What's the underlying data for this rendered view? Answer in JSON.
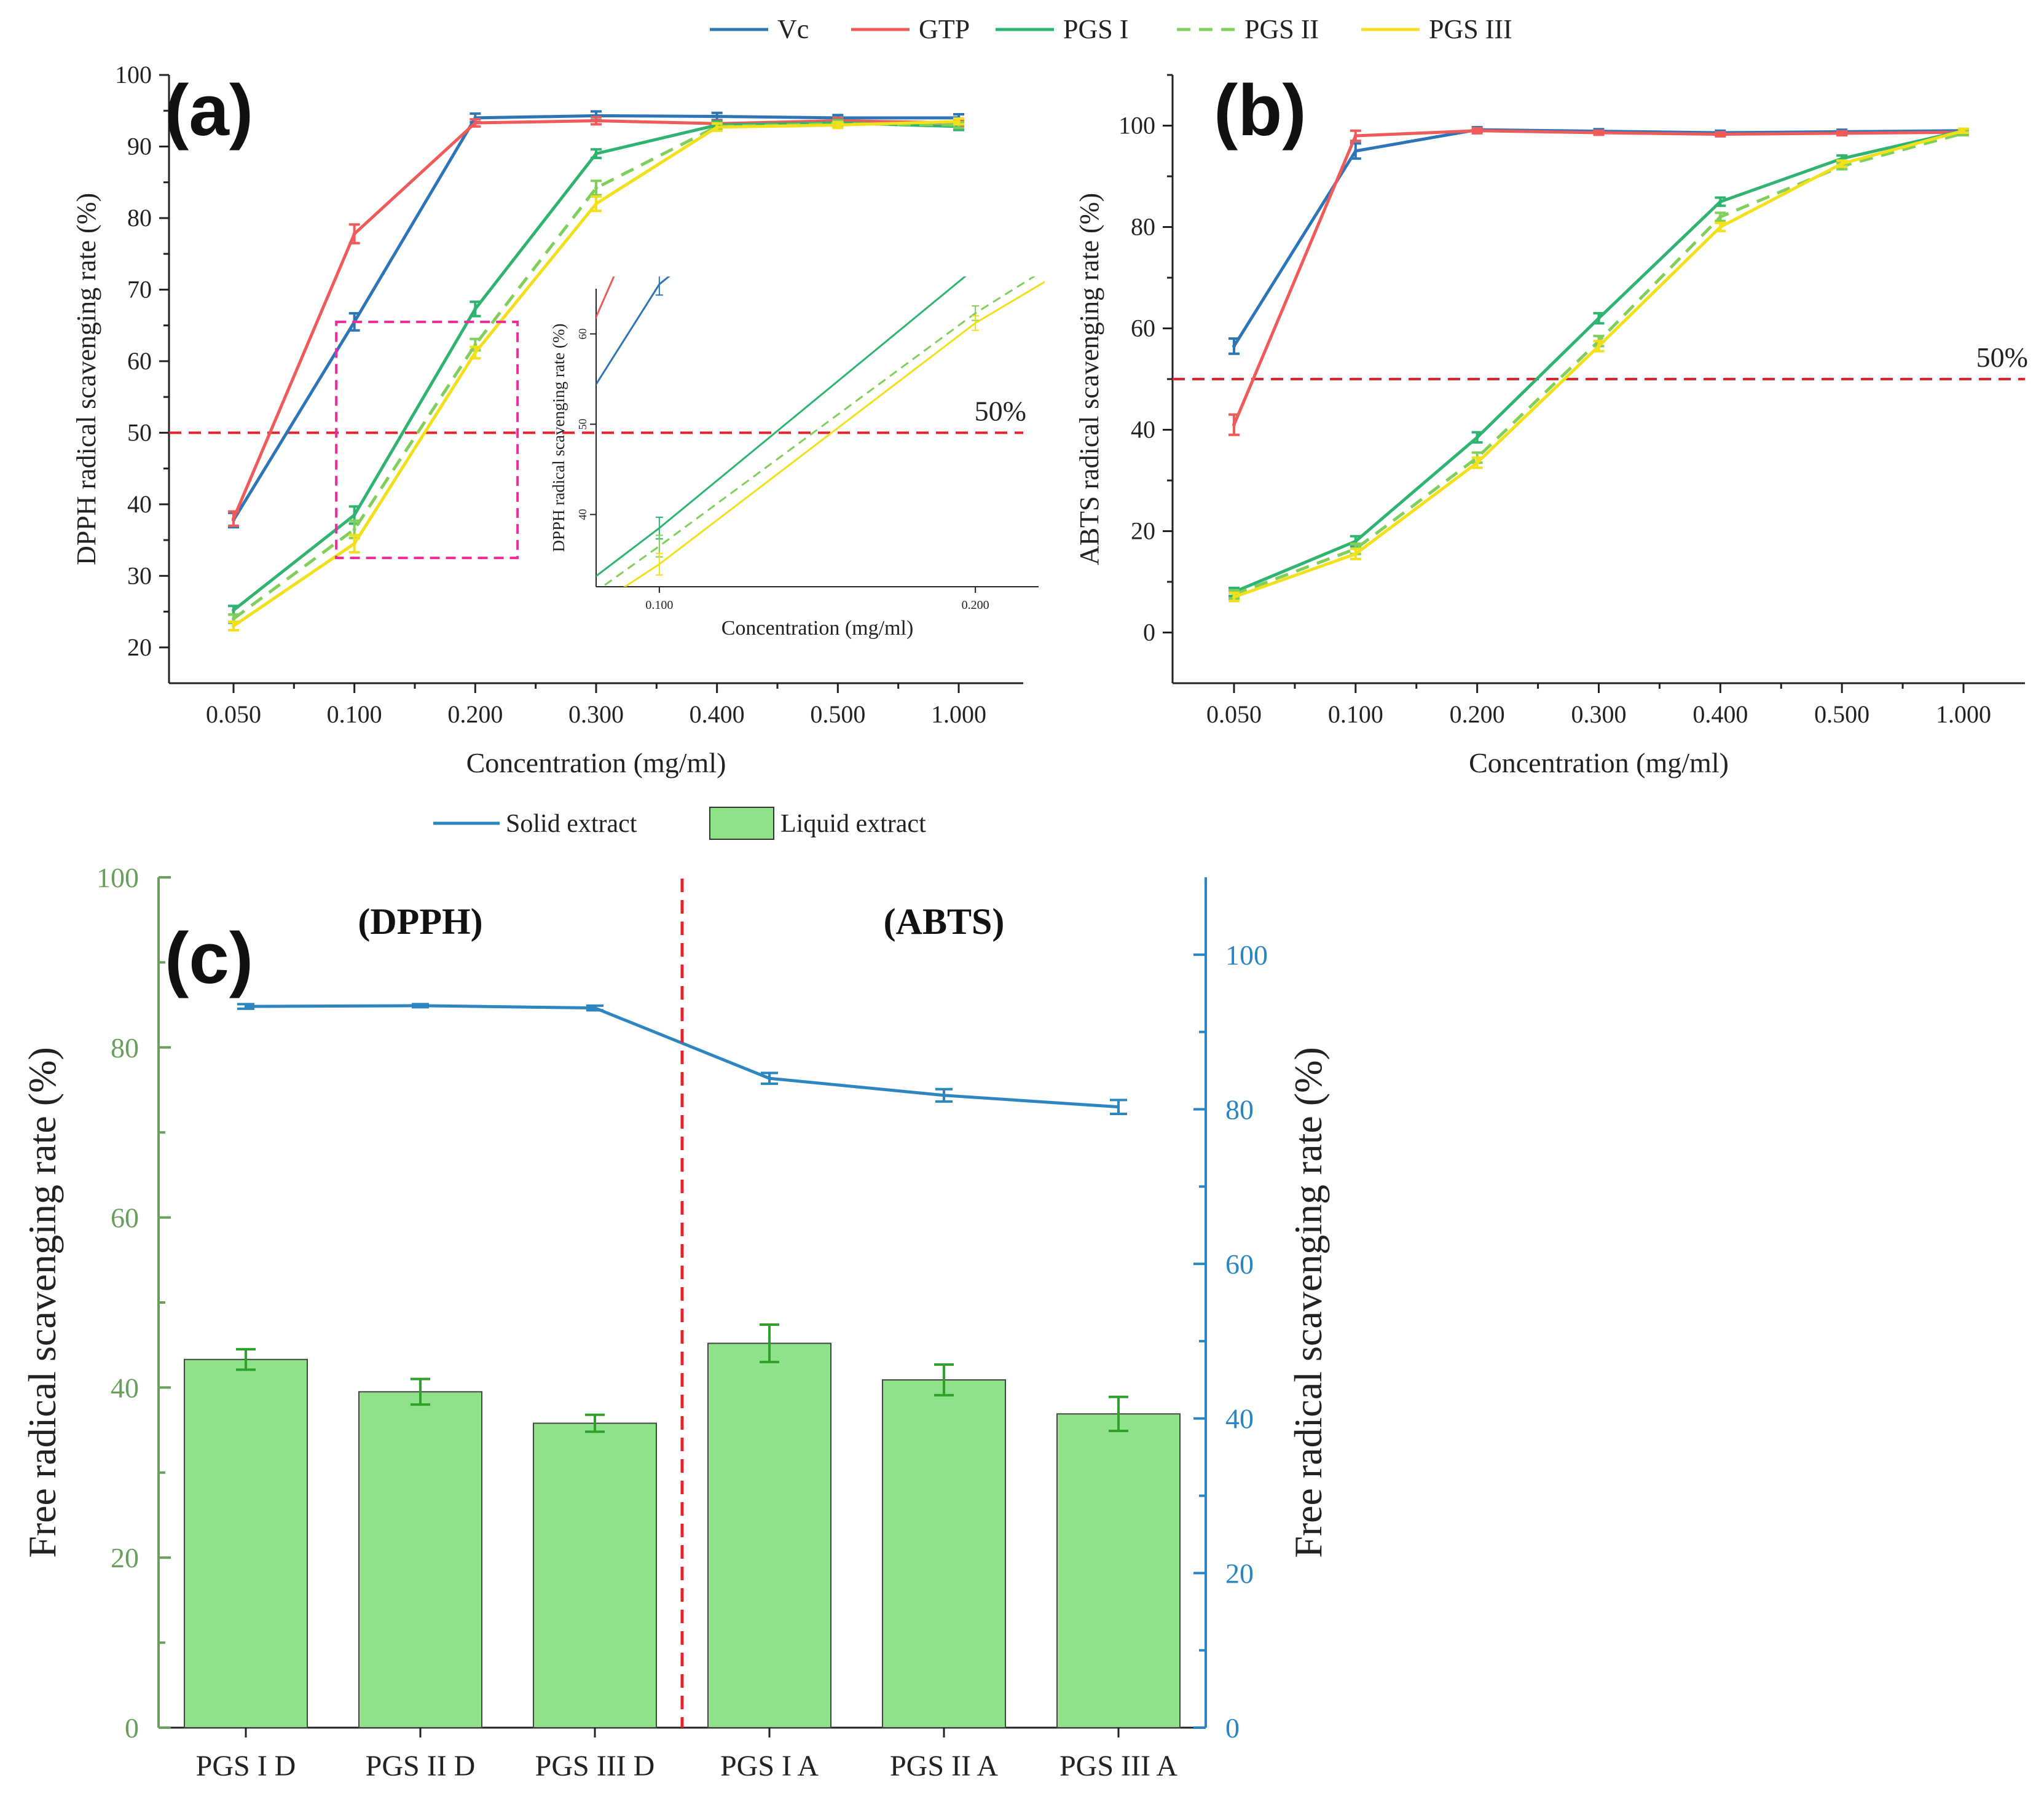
{
  "legend_top": [
    {
      "name": "Vc",
      "color": "#2e75b6",
      "dash": false
    },
    {
      "name": "GTP",
      "color": "#ef5b5b",
      "dash": false
    },
    {
      "name": "PGS I",
      "color": "#2eb370",
      "dash": false
    },
    {
      "name": "PGS II",
      "color": "#7fcf5a",
      "dash": true
    },
    {
      "name": "PGS III",
      "color": "#f2e01a",
      "dash": false
    }
  ],
  "chart_data": [
    {
      "panel": "(a)",
      "type": "line",
      "categories": [
        "0.050",
        "0.100",
        "0.200",
        "0.300",
        "0.400",
        "0.500",
        "1.000"
      ],
      "xlabel": "Concentration (mg/ml)",
      "ylabel": "DPPH radical scavenging rate (%)",
      "ylim": [
        15,
        100
      ],
      "yticks": [
        20,
        30,
        40,
        50,
        60,
        70,
        80,
        90,
        100
      ],
      "threshold": 50,
      "threshold_label": "50%",
      "series": [
        {
          "name": "Vc",
          "values": [
            37.8,
            65.5,
            94.0,
            94.3,
            94.2,
            94.0,
            94.0
          ],
          "errors": [
            1.0,
            1.2,
            0.6,
            0.6,
            0.5,
            0.4,
            0.5
          ]
        },
        {
          "name": "GTP",
          "values": [
            38.0,
            77.8,
            93.3,
            93.6,
            93.2,
            93.6,
            93.3
          ],
          "errors": [
            1.0,
            1.3,
            0.5,
            0.5,
            0.4,
            0.4,
            0.4
          ]
        },
        {
          "name": "PGS I",
          "values": [
            25.2,
            38.5,
            67.3,
            89.0,
            93.0,
            93.3,
            92.8
          ],
          "errors": [
            0.6,
            1.2,
            1.0,
            0.6,
            0.5,
            0.4,
            0.5
          ]
        },
        {
          "name": "PGS II",
          "values": [
            24.0,
            36.5,
            62.3,
            84.2,
            92.8,
            93.2,
            93.0
          ],
          "errors": [
            0.6,
            1.2,
            0.8,
            1.0,
            0.5,
            0.4,
            0.4
          ]
        },
        {
          "name": "PGS III",
          "values": [
            23.0,
            34.5,
            61.2,
            82.0,
            92.7,
            93.0,
            93.5
          ],
          "errors": [
            0.6,
            1.2,
            0.8,
            1.0,
            0.5,
            0.4,
            0.4
          ]
        }
      ],
      "inset": {
        "xlabel": "Concentration (mg/ml)",
        "ylabel": "DPPH radical scavenging rate (%)",
        "xticks": [
          "0.100",
          "0.200"
        ],
        "yticks": [
          40,
          50,
          60
        ],
        "xlim": [
          0.08,
          0.22
        ],
        "ylim": [
          32,
          65
        ]
      }
    },
    {
      "panel": "(b)",
      "type": "line",
      "categories": [
        "0.050",
        "0.100",
        "0.200",
        "0.300",
        "0.400",
        "0.500",
        "1.000"
      ],
      "xlabel": "Concentration (mg/ml)",
      "ylabel": "ABTS radical scavenging rate (%)",
      "ylim": [
        -10,
        110
      ],
      "yticks": [
        0,
        20,
        40,
        60,
        80,
        100
      ],
      "threshold": 50,
      "threshold_label": "50%",
      "series": [
        {
          "name": "Vc",
          "values": [
            56.5,
            95.0,
            99.2,
            98.9,
            98.6,
            98.8,
            99.0
          ],
          "errors": [
            1.5,
            1.5,
            0.5,
            0.4,
            0.4,
            0.4,
            0.4
          ]
        },
        {
          "name": "GTP",
          "values": [
            41.0,
            98.0,
            99.0,
            98.6,
            98.3,
            98.5,
            98.7
          ],
          "errors": [
            2.0,
            1.0,
            0.5,
            0.4,
            0.4,
            0.4,
            0.4
          ]
        },
        {
          "name": "PGS I",
          "values": [
            8.0,
            18.0,
            38.5,
            62.0,
            85.0,
            93.5,
            99.0
          ],
          "errors": [
            0.8,
            1.0,
            1.0,
            1.0,
            0.8,
            0.6,
            0.4
          ]
        },
        {
          "name": "PGS II",
          "values": [
            7.5,
            16.5,
            34.5,
            57.5,
            82.0,
            92.0,
            98.5
          ],
          "errors": [
            0.8,
            1.0,
            1.0,
            1.0,
            0.8,
            0.6,
            0.4
          ]
        },
        {
          "name": "PGS III",
          "values": [
            7.0,
            15.5,
            33.5,
            56.5,
            80.0,
            92.5,
            99.0
          ],
          "errors": [
            0.8,
            1.0,
            1.0,
            1.0,
            0.8,
            0.6,
            0.4
          ]
        }
      ]
    },
    {
      "panel": "(c)",
      "type": "bar",
      "categories": [
        "PGS I D",
        "PGS II D",
        "PGS III D",
        "PGS I A",
        "PGS II A",
        "PGS III A"
      ],
      "ylabel_left": "Free radical scavenging rate (%)",
      "ylabel_right": "Free radical scavenging rate (%)",
      "ylim_left": [
        0,
        100
      ],
      "ylim_right": [
        0,
        110
      ],
      "yticks_left": [
        0,
        20,
        40,
        60,
        80,
        100
      ],
      "yticks_right": [
        0,
        20,
        40,
        60,
        80,
        100
      ],
      "group_labels": [
        "(DPPH)",
        "(ABTS)"
      ],
      "legend": [
        {
          "name": "Solid extract",
          "color": "#2e86c1",
          "kind": "line"
        },
        {
          "name": "Liquid extract",
          "color": "#90e28a",
          "kind": "bar"
        }
      ],
      "series": [
        {
          "name": "Liquid extract",
          "axis": "left",
          "values": [
            43.3,
            39.5,
            35.8,
            45.2,
            40.9,
            36.9
          ],
          "errors": [
            1.2,
            1.5,
            1.0,
            2.2,
            1.8,
            2.0
          ]
        },
        {
          "name": "Solid extract",
          "axis": "right",
          "values": [
            93.3,
            93.4,
            93.1,
            84.0,
            81.8,
            80.3
          ],
          "errors": [
            0.3,
            0.2,
            0.3,
            0.7,
            0.8,
            0.9
          ]
        }
      ]
    }
  ]
}
